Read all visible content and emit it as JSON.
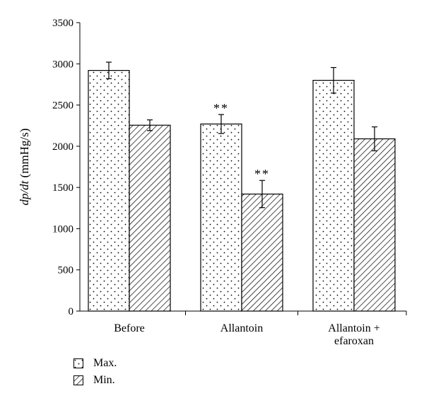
{
  "chart_data": {
    "type": "bar",
    "title": "",
    "ylabel": "dp/dt (mmHg/s)",
    "xlabel": "",
    "categories": [
      "Before",
      "Allantoin",
      "Allantoin + efaroxan"
    ],
    "category_lines": [
      [
        "Before"
      ],
      [
        "Allantoin"
      ],
      [
        "Allantoin +",
        "efaroxan"
      ]
    ],
    "ylim": [
      0,
      3500
    ],
    "yticks": [
      0,
      500,
      1000,
      1500,
      2000,
      2500,
      3000,
      3500
    ],
    "series": [
      {
        "name": "Max.",
        "pattern": "dots",
        "values": [
          2920,
          2270,
          2800
        ],
        "errors": [
          100,
          115,
          155
        ]
      },
      {
        "name": "Min.",
        "pattern": "hatch",
        "values": [
          2255,
          1420,
          2090
        ],
        "errors": [
          65,
          165,
          145
        ]
      }
    ],
    "annotations": [
      {
        "series": 0,
        "category": 1,
        "text": "**"
      },
      {
        "series": 1,
        "category": 1,
        "text": "**"
      }
    ],
    "grid": false,
    "legend_position": "bottom-left"
  },
  "colors": {
    "bar_fill": "#ffffff",
    "stroke": "#000000"
  }
}
